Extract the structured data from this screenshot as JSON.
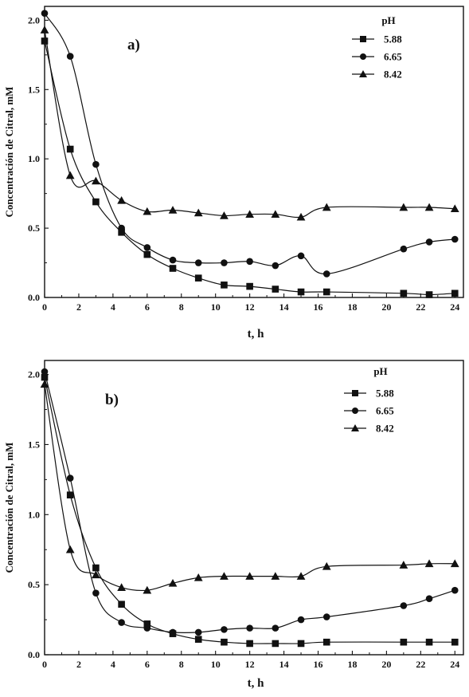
{
  "colors": {
    "ink": "#111111",
    "background": "#ffffff"
  },
  "chart_data": [
    {
      "type": "line",
      "panel_label": "a)",
      "xlabel": "t, h",
      "ylabel": "Concentración de Citral, mM",
      "xlim": [
        0,
        24.5
      ],
      "ylim": [
        0,
        2.1
      ],
      "xticks": [
        0,
        2,
        4,
        6,
        8,
        10,
        12,
        14,
        16,
        18,
        20,
        22,
        24
      ],
      "xtick_labels": [
        "0",
        "2",
        "4",
        "6",
        "8",
        "10",
        "12",
        "14",
        "16",
        "18",
        "20",
        "22",
        "24"
      ],
      "yticks": [
        0,
        0.5,
        1.0,
        1.5,
        2.0
      ],
      "ytick_labels": [
        "0.0",
        "0.5",
        "1.0",
        "1.5",
        "2.0"
      ],
      "grid": false,
      "legend": {
        "title": "pH",
        "placement": "top-right"
      },
      "series": [
        {
          "name": "5.88",
          "marker": "square",
          "x": [
            0,
            1.5,
            3,
            4.5,
            6,
            7.5,
            9,
            10.5,
            12,
            13.5,
            15,
            16.5,
            21,
            22.5,
            24
          ],
          "y": [
            1.85,
            1.07,
            0.69,
            0.47,
            0.31,
            0.21,
            0.14,
            0.09,
            0.08,
            0.06,
            0.04,
            0.04,
            0.03,
            0.02,
            0.03
          ]
        },
        {
          "name": "6.65",
          "marker": "circle",
          "x": [
            0,
            1.5,
            3,
            4.5,
            6,
            7.5,
            9,
            10.5,
            12,
            13.5,
            15,
            16.5,
            21,
            22.5,
            24
          ],
          "y": [
            2.05,
            1.74,
            0.96,
            0.5,
            0.36,
            0.27,
            0.25,
            0.25,
            0.26,
            0.23,
            0.3,
            0.17,
            0.35,
            0.4,
            0.42
          ]
        },
        {
          "name": "8.42",
          "marker": "triangle",
          "x": [
            0,
            1.5,
            3,
            4.5,
            6,
            7.5,
            9,
            10.5,
            12,
            13.5,
            15,
            16.5,
            21,
            22.5,
            24
          ],
          "y": [
            1.93,
            0.88,
            0.84,
            0.7,
            0.62,
            0.63,
            0.61,
            0.59,
            0.6,
            0.6,
            0.58,
            0.65,
            0.65,
            0.65,
            0.64
          ]
        }
      ]
    },
    {
      "type": "line",
      "panel_label": "b)",
      "xlabel": "t, h",
      "ylabel": "Concentración de Citral, mM",
      "xlim": [
        0,
        24.5
      ],
      "ylim": [
        0,
        2.1
      ],
      "xticks": [
        0,
        2,
        4,
        6,
        8,
        10,
        12,
        14,
        16,
        18,
        20,
        22,
        24
      ],
      "xtick_labels": [
        "0",
        "2",
        "4",
        "6",
        "8",
        "10",
        "12",
        "14",
        "16",
        "18",
        "20",
        "22",
        "24"
      ],
      "yticks": [
        0,
        0.5,
        1.0,
        1.5,
        2.0
      ],
      "ytick_labels": [
        "0.0",
        "0.5",
        "1.0",
        "1.5",
        "2.0"
      ],
      "grid": false,
      "legend": {
        "title": "pH",
        "placement": "top-right"
      },
      "series": [
        {
          "name": "5.88",
          "marker": "square",
          "x": [
            0,
            1.5,
            3,
            4.5,
            6,
            7.5,
            9,
            10.5,
            12,
            13.5,
            15,
            16.5,
            21,
            22.5,
            24
          ],
          "y": [
            1.98,
            1.14,
            0.62,
            0.36,
            0.22,
            0.15,
            0.11,
            0.09,
            0.08,
            0.08,
            0.08,
            0.09,
            0.09,
            0.09,
            0.09
          ]
        },
        {
          "name": "6.65",
          "marker": "circle",
          "x": [
            0,
            1.5,
            3,
            4.5,
            6,
            7.5,
            9,
            10.5,
            12,
            13.5,
            15,
            16.5,
            21,
            22.5,
            24
          ],
          "y": [
            2.02,
            1.26,
            0.44,
            0.23,
            0.19,
            0.16,
            0.16,
            0.18,
            0.19,
            0.19,
            0.25,
            0.27,
            0.35,
            0.4,
            0.46
          ]
        },
        {
          "name": "8.42",
          "marker": "triangle",
          "x": [
            0,
            1.5,
            3,
            4.5,
            6,
            7.5,
            9,
            10.5,
            12,
            13.5,
            15,
            16.5,
            21,
            22.5,
            24
          ],
          "y": [
            1.93,
            0.75,
            0.57,
            0.48,
            0.46,
            0.51,
            0.55,
            0.56,
            0.56,
            0.56,
            0.56,
            0.63,
            0.64,
            0.65,
            0.65
          ]
        }
      ]
    }
  ]
}
